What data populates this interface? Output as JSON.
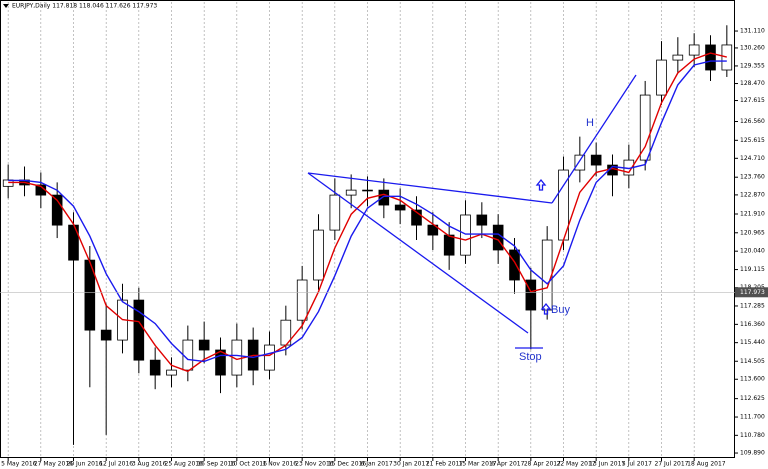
{
  "chart_data": {
    "type": "candlestick",
    "title": "EURJPY,Daily  117.818 118.046 117.626 117.973",
    "categories": [
      "5 May 2016",
      null,
      "27 May 2016",
      null,
      "20 Jun 2016",
      null,
      "12 Jul 2016",
      null,
      "3 Aug 2016",
      null,
      "25 Aug 2016",
      null,
      "16 Sep 2016",
      null,
      "10 Oct 2016",
      null,
      "1 Nov 2016",
      null,
      "23 Nov 2016",
      null,
      "15 Dec 2016",
      null,
      "6 Jan 2017",
      null,
      "30 Jan 2017",
      null,
      "21 Feb 2017",
      null,
      "15 Mar 2017",
      null,
      "6 Apr 2017",
      null,
      "28 Apr 2017",
      null,
      "22 May 2017",
      null,
      "13 Jun 2017",
      null,
      "5 Jul 2017",
      null,
      "27 Jul 2017",
      null,
      "18 Aug 2017",
      null,
      null
    ],
    "open": [
      123.3,
      123.62,
      123.37,
      122.86,
      121.35,
      119.59,
      116.07,
      115.57,
      117.58,
      114.56,
      113.81,
      114.06,
      115.57,
      115.07,
      113.81,
      115.57,
      114.06,
      115.32,
      116.57,
      118.59,
      121.1,
      122.86,
      123.11,
      123.11,
      122.36,
      122.11,
      121.35,
      120.85,
      119.84,
      121.86,
      121.35,
      120.1,
      118.59,
      117.08,
      120.6,
      124.12,
      124.87,
      124.37,
      123.87,
      124.62,
      127.89,
      129.65,
      129.9,
      130.41,
      129.15
    ],
    "high": [
      124.4,
      124.3,
      124.0,
      123.5,
      122.0,
      120.3,
      117.4,
      118.4,
      118.2,
      115.2,
      114.7,
      116.3,
      116.5,
      115.7,
      116.4,
      116.2,
      116.0,
      117.3,
      119.3,
      121.9,
      123.7,
      123.9,
      123.8,
      123.7,
      123.2,
      122.8,
      122.0,
      121.5,
      122.6,
      122.5,
      121.9,
      120.7,
      119.2,
      121.3,
      124.8,
      125.8,
      125.5,
      124.9,
      125.4,
      128.6,
      130.6,
      130.8,
      131.0,
      130.9,
      131.4
    ],
    "low": [
      122.7,
      122.8,
      122.2,
      120.7,
      110.3,
      113.2,
      110.8,
      114.9,
      113.9,
      113.1,
      113.2,
      113.5,
      114.4,
      112.9,
      113.2,
      113.3,
      113.6,
      114.8,
      116.1,
      118.1,
      120.6,
      122.2,
      122.3,
      121.7,
      121.4,
      120.6,
      120.1,
      119.1,
      119.4,
      120.7,
      119.4,
      117.9,
      115.1,
      116.6,
      120.1,
      123.5,
      123.8,
      122.8,
      123.2,
      124.1,
      127.4,
      129.0,
      129.3,
      128.6,
      128.8
    ],
    "close": [
      123.62,
      123.37,
      122.86,
      121.35,
      119.59,
      116.07,
      115.57,
      117.58,
      114.56,
      113.81,
      114.06,
      115.57,
      115.07,
      113.81,
      115.57,
      114.06,
      115.32,
      116.57,
      118.59,
      121.1,
      122.86,
      123.11,
      123.11,
      122.36,
      122.11,
      121.35,
      120.85,
      119.84,
      121.86,
      121.35,
      120.1,
      118.59,
      117.08,
      120.6,
      124.12,
      124.87,
      124.37,
      123.87,
      124.62,
      127.89,
      129.65,
      129.9,
      130.41,
      129.15,
      130.41
    ],
    "lines": [
      {
        "color": "#e00000",
        "values": [
          123.5,
          123.5,
          123.3,
          122.6,
          121.4,
          119.5,
          117.3,
          116.6,
          116.5,
          115.3,
          114.3,
          114.0,
          114.6,
          115.0,
          114.6,
          114.8,
          114.8,
          115.3,
          116.3,
          118.0,
          120.2,
          121.9,
          122.7,
          122.9,
          122.6,
          122.0,
          121.4,
          120.8,
          120.6,
          120.9,
          120.6,
          119.5,
          118.0,
          118.2,
          120.6,
          123.0,
          124.0,
          124.2,
          124.0,
          125.3,
          127.5,
          129.0,
          129.7,
          130.0,
          129.8
        ]
      },
      {
        "color": "#1a1aee",
        "values": [
          123.6,
          123.6,
          123.5,
          123.1,
          122.3,
          120.8,
          118.9,
          117.5,
          117.0,
          116.4,
          115.4,
          114.6,
          114.5,
          114.8,
          114.8,
          114.7,
          114.9,
          115.1,
          115.7,
          117.0,
          118.8,
          120.8,
          122.2,
          122.8,
          122.8,
          122.4,
          121.9,
          121.3,
          120.9,
          120.9,
          120.9,
          120.3,
          119.1,
          118.4,
          119.3,
          121.6,
          123.5,
          124.3,
          124.2,
          124.4,
          126.5,
          128.4,
          129.4,
          129.6,
          129.6
        ]
      }
    ],
    "ylim": [
      109.64,
      132.57
    ],
    "yticks": [
      {
        "value": 131.11,
        "label": "131.110"
      },
      {
        "value": 130.26,
        "label": "130.260"
      },
      129.355,
      {
        "value": 128.47,
        "label": "128.470"
      },
      127.615,
      {
        "value": 126.56,
        "label": "126.560"
      },
      125.615,
      {
        "value": 124.71,
        "label": "124.710"
      },
      {
        "value": 123.76,
        "label": "123.760"
      },
      {
        "value": 122.87,
        "label": "122.870"
      },
      {
        "value": 121.91,
        "label": "121.910"
      },
      120.965,
      {
        "value": 120.04,
        "label": "120.040"
      },
      119.115,
      118.205,
      117.285,
      {
        "value": 116.36,
        "label": "116.360"
      },
      {
        "value": 115.44,
        "label": "115.440"
      },
      114.505,
      {
        "value": 113.6,
        "label": "113.600"
      },
      112.625,
      {
        "value": 111.7,
        "label": "111.700"
      },
      {
        "value": 110.78,
        "label": "110.780"
      },
      {
        "value": 109.89,
        "label": "109.890"
      }
    ],
    "current_price": 117.973,
    "grid": true,
    "annotations": {
      "high": "H",
      "buy": "Buy",
      "stop": "Stop"
    }
  }
}
